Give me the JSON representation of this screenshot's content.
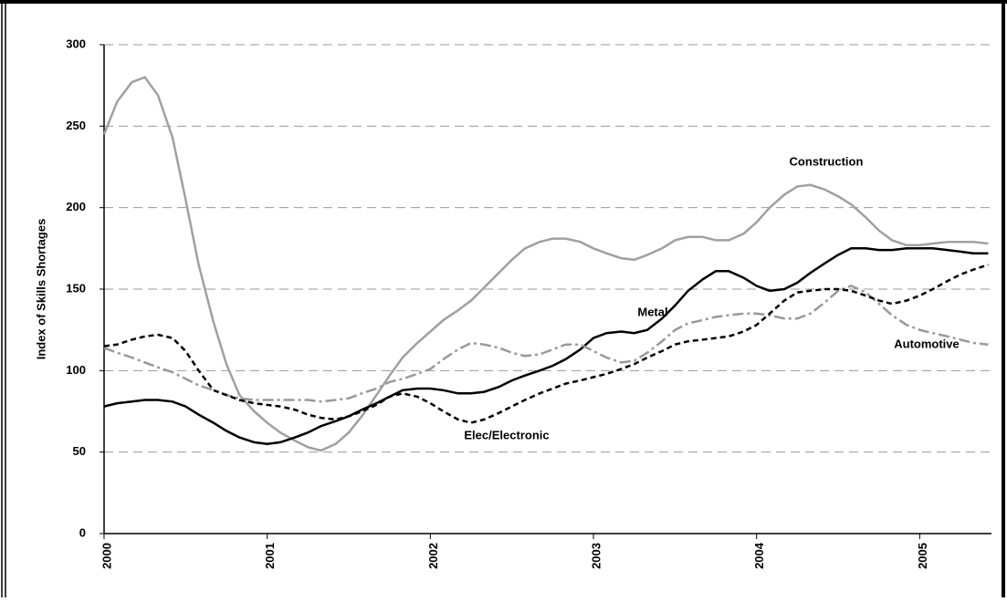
{
  "chart_data": {
    "type": "line",
    "ylabel": "Index of Skills Shortages",
    "x": [
      2000,
      2000.08,
      2000.17,
      2000.25,
      2000.33,
      2000.42,
      2000.5,
      2000.58,
      2000.67,
      2000.75,
      2000.83,
      2000.92,
      2001,
      2001.08,
      2001.17,
      2001.25,
      2001.33,
      2001.42,
      2001.5,
      2001.58,
      2001.67,
      2001.75,
      2001.83,
      2001.92,
      2002,
      2002.08,
      2002.17,
      2002.25,
      2002.33,
      2002.42,
      2002.5,
      2002.58,
      2002.67,
      2002.75,
      2002.83,
      2002.92,
      2003,
      2003.08,
      2003.17,
      2003.25,
      2003.33,
      2003.42,
      2003.5,
      2003.58,
      2003.67,
      2003.75,
      2003.83,
      2003.92,
      2004,
      2004.08,
      2004.17,
      2004.25,
      2004.33,
      2004.42,
      2004.5,
      2004.58,
      2004.67,
      2004.75,
      2004.83,
      2004.92,
      2005,
      2005.08,
      2005.17,
      2005.25,
      2005.33,
      2005.42
    ],
    "xlim": [
      2000,
      2005.44
    ],
    "xticks": [
      2000,
      2001,
      2002,
      2003,
      2004,
      2005
    ],
    "ylim": [
      0,
      300
    ],
    "yticks": [
      0,
      50,
      100,
      150,
      200,
      250,
      300
    ],
    "grid": true,
    "series": [
      {
        "name": "Construction",
        "color": "#a0a0a0",
        "dash": "solid",
        "values": [
          245,
          265,
          277,
          280,
          269,
          243,
          205,
          165,
          130,
          104,
          85,
          75,
          68,
          62,
          57,
          53,
          51,
          55,
          62,
          72,
          85,
          97,
          108,
          117,
          124,
          131,
          137,
          143,
          151,
          160,
          168,
          175,
          179,
          181,
          181,
          179,
          175,
          172,
          169,
          168,
          171,
          175,
          180,
          182,
          182,
          180,
          180,
          184,
          191,
          200,
          208,
          213,
          214,
          211,
          207,
          202,
          194,
          186,
          180,
          177,
          177,
          178,
          179,
          179,
          179,
          178
        ]
      },
      {
        "name": "Metal",
        "color": "#000000",
        "dash": "solid",
        "values": [
          78,
          80,
          81,
          82,
          82,
          81,
          78,
          73,
          68,
          63,
          59,
          56,
          55,
          56,
          59,
          62,
          66,
          69,
          72,
          76,
          80,
          84,
          88,
          89,
          89,
          88,
          86,
          86,
          87,
          90,
          94,
          97,
          100,
          103,
          107,
          113,
          120,
          123,
          124,
          123,
          125,
          132,
          140,
          149,
          156,
          161,
          161,
          157,
          152,
          149,
          150,
          154,
          160,
          166,
          171,
          175,
          175,
          174,
          174,
          175,
          175,
          175,
          174,
          173,
          172,
          172
        ]
      },
      {
        "name": "Automotive",
        "color": "#999999",
        "dash": "dashdot",
        "values": [
          114,
          111,
          108,
          105,
          102,
          99,
          95,
          91,
          88,
          85,
          83,
          82,
          82,
          82,
          82,
          82,
          81,
          82,
          83,
          86,
          89,
          93,
          95,
          98,
          101,
          107,
          113,
          117,
          116,
          114,
          111,
          109,
          110,
          113,
          116,
          116,
          112,
          108,
          105,
          106,
          111,
          118,
          125,
          129,
          131,
          133,
          134,
          135,
          135,
          134,
          132,
          132,
          135,
          142,
          149,
          152,
          148,
          141,
          134,
          128,
          125,
          123,
          121,
          119,
          117,
          116
        ]
      },
      {
        "name": "Elec/Electronic",
        "color": "#000000",
        "dash": "dashed",
        "values": [
          115,
          116,
          119,
          121,
          122,
          120,
          112,
          100,
          88,
          85,
          82,
          80,
          79,
          78,
          76,
          73,
          71,
          70,
          72,
          75,
          79,
          84,
          86,
          84,
          80,
          75,
          70,
          68,
          70,
          74,
          78,
          82,
          86,
          89,
          92,
          94,
          96,
          98,
          101,
          104,
          108,
          112,
          116,
          118,
          119,
          120,
          121,
          124,
          128,
          135,
          143,
          148,
          149,
          150,
          150,
          149,
          146,
          143,
          141,
          143,
          146,
          150,
          155,
          159,
          162,
          165
        ]
      }
    ]
  }
}
